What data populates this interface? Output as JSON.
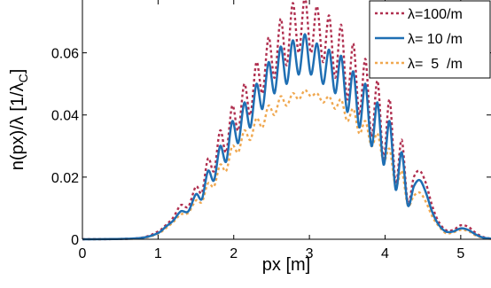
{
  "chart_data": {
    "type": "line",
    "title": "",
    "xlabel": "px [m]",
    "ylabel_main": "n(px)/λ [1/λ",
    "ylabel_sub": "C",
    "ylabel_close": "]",
    "xlim": [
      0,
      5.4
    ],
    "ylim": [
      0,
      0.077
    ],
    "xticks": [
      0,
      1,
      2,
      3,
      4,
      5
    ],
    "xtick_labels": [
      "0",
      "1",
      "2",
      "3",
      "4",
      "5"
    ],
    "yticks": [
      0,
      0.02,
      0.04,
      0.06
    ],
    "ytick_labels": [
      "0",
      "0.02",
      "0.04",
      "0.06"
    ],
    "grid": false,
    "legend_position": "top-right",
    "series": [
      {
        "name": "λ=100/m",
        "color": "#b03050",
        "dash": "dotted",
        "x": [
          0,
          0.5,
          0.8,
          1.0,
          1.1,
          1.2,
          1.3,
          1.4,
          1.5,
          1.58,
          1.66,
          1.74,
          1.82,
          1.9,
          1.98,
          2.06,
          2.14,
          2.22,
          2.3,
          2.38,
          2.46,
          2.54,
          2.62,
          2.7,
          2.78,
          2.86,
          2.94,
          3.02,
          3.1,
          3.18,
          3.26,
          3.34,
          3.42,
          3.5,
          3.58,
          3.66,
          3.74,
          3.82,
          3.9,
          3.98,
          4.06,
          4.14,
          4.22,
          4.3,
          4.38,
          4.46,
          4.54,
          4.62,
          4.7,
          4.8,
          4.9,
          5.0,
          5.1,
          5.2,
          5.3,
          5.4
        ],
        "y": [
          0,
          0.0001,
          0.0006,
          0.0025,
          0.0045,
          0.007,
          0.011,
          0.0105,
          0.017,
          0.015,
          0.026,
          0.022,
          0.035,
          0.028,
          0.043,
          0.035,
          0.05,
          0.04,
          0.057,
          0.047,
          0.065,
          0.052,
          0.071,
          0.056,
          0.076,
          0.06,
          0.078,
          0.06,
          0.075,
          0.057,
          0.072,
          0.052,
          0.069,
          0.045,
          0.063,
          0.04,
          0.058,
          0.033,
          0.051,
          0.026,
          0.045,
          0.018,
          0.032,
          0.012,
          0.02,
          0.022,
          0.018,
          0.011,
          0.006,
          0.003,
          0.003,
          0.0045,
          0.004,
          0.002,
          0.0007,
          0.0002
        ]
      },
      {
        "name": "λ= 10 /m",
        "color": "#1f6fb3",
        "dash": "solid",
        "x": [
          0,
          0.5,
          0.8,
          1.0,
          1.1,
          1.2,
          1.3,
          1.4,
          1.5,
          1.58,
          1.66,
          1.74,
          1.82,
          1.9,
          1.98,
          2.06,
          2.14,
          2.22,
          2.3,
          2.38,
          2.46,
          2.54,
          2.62,
          2.7,
          2.78,
          2.86,
          2.94,
          3.02,
          3.1,
          3.18,
          3.26,
          3.34,
          3.42,
          3.5,
          3.58,
          3.66,
          3.74,
          3.82,
          3.9,
          3.98,
          4.06,
          4.14,
          4.22,
          4.3,
          4.38,
          4.46,
          4.54,
          4.62,
          4.7,
          4.8,
          4.9,
          5.0,
          5.1,
          5.2,
          5.3,
          5.4
        ],
        "y": [
          0,
          0.0001,
          0.0005,
          0.002,
          0.004,
          0.006,
          0.009,
          0.009,
          0.0145,
          0.013,
          0.022,
          0.019,
          0.03,
          0.025,
          0.038,
          0.031,
          0.044,
          0.036,
          0.05,
          0.042,
          0.057,
          0.047,
          0.062,
          0.05,
          0.064,
          0.053,
          0.066,
          0.053,
          0.063,
          0.05,
          0.061,
          0.047,
          0.059,
          0.041,
          0.054,
          0.036,
          0.05,
          0.03,
          0.044,
          0.024,
          0.038,
          0.016,
          0.028,
          0.011,
          0.017,
          0.019,
          0.015,
          0.009,
          0.005,
          0.0025,
          0.0025,
          0.0035,
          0.003,
          0.0015,
          0.0005,
          0.0002
        ]
      },
      {
        "name": "λ=  5  /m",
        "color": "#f0a850",
        "dash": "dotted",
        "x": [
          0,
          0.5,
          0.8,
          1.0,
          1.1,
          1.2,
          1.3,
          1.4,
          1.5,
          1.58,
          1.66,
          1.74,
          1.82,
          1.9,
          1.98,
          2.06,
          2.14,
          2.22,
          2.3,
          2.38,
          2.46,
          2.54,
          2.62,
          2.7,
          2.78,
          2.86,
          2.94,
          3.02,
          3.1,
          3.18,
          3.26,
          3.34,
          3.42,
          3.5,
          3.58,
          3.66,
          3.74,
          3.82,
          3.9,
          3.98,
          4.06,
          4.14,
          4.22,
          4.3,
          4.38,
          4.46,
          4.54,
          4.62,
          4.7,
          4.8,
          4.9,
          5.0,
          5.1,
          5.2,
          5.3,
          5.4
        ],
        "y": [
          0,
          0.0001,
          0.0004,
          0.0018,
          0.0035,
          0.0055,
          0.008,
          0.0085,
          0.0125,
          0.012,
          0.018,
          0.017,
          0.024,
          0.022,
          0.03,
          0.028,
          0.035,
          0.032,
          0.039,
          0.036,
          0.043,
          0.04,
          0.046,
          0.043,
          0.047,
          0.045,
          0.048,
          0.046,
          0.047,
          0.044,
          0.046,
          0.042,
          0.045,
          0.038,
          0.042,
          0.034,
          0.038,
          0.03,
          0.034,
          0.025,
          0.029,
          0.017,
          0.022,
          0.011,
          0.014,
          0.015,
          0.012,
          0.0075,
          0.0045,
          0.002,
          0.0022,
          0.003,
          0.0026,
          0.0012,
          0.0004,
          0.0001
        ]
      }
    ]
  }
}
